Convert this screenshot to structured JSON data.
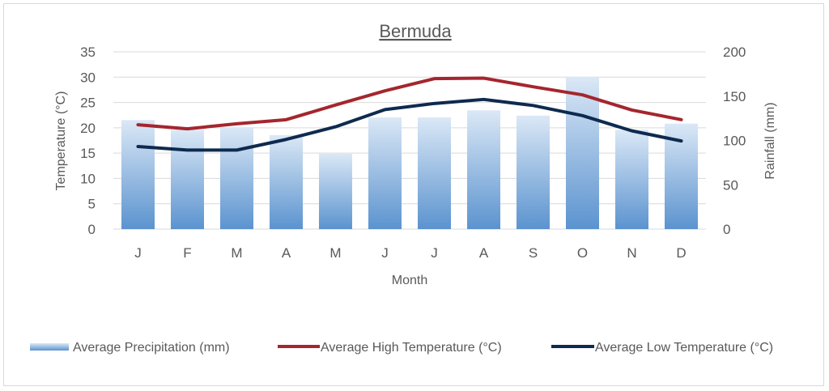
{
  "chart_data": {
    "type": "bar+line",
    "title": "Bermuda",
    "xlabel": "Month",
    "ylabel_left": "Temperature (°C)",
    "ylabel_right": "Rainfall (mm)",
    "categories": [
      "J",
      "F",
      "M",
      "A",
      "M",
      "J",
      "J",
      "A",
      "S",
      "O",
      "N",
      "D"
    ],
    "ylim_left": [
      0,
      35
    ],
    "yticks_left": [
      0,
      5,
      10,
      15,
      20,
      25,
      30,
      35
    ],
    "ylim_right": [
      0,
      200
    ],
    "yticks_right": [
      0,
      50,
      100,
      150,
      200
    ],
    "grid": true,
    "legend": "bottom",
    "series": [
      {
        "name": "Average Precipitation (mm)",
        "type": "bar",
        "axis": "right",
        "color": "#5b9bd5",
        "values": [
          123,
          112,
          115,
          106,
          85,
          126,
          126,
          134,
          128,
          172,
          112,
          119
        ]
      },
      {
        "name": "Average High Temperature (°C)",
        "type": "line",
        "axis": "left",
        "color": "#a5262e",
        "values": [
          20.6,
          19.8,
          20.8,
          21.6,
          24.5,
          27.3,
          29.7,
          29.8,
          28.1,
          26.5,
          23.5,
          21.6
        ]
      },
      {
        "name": "Average Low Temperature (°C)",
        "type": "line",
        "axis": "left",
        "color": "#0e2a4f",
        "values": [
          16.3,
          15.6,
          15.6,
          17.7,
          20.2,
          23.6,
          24.8,
          25.6,
          24.4,
          22.4,
          19.4,
          17.4
        ]
      }
    ]
  }
}
